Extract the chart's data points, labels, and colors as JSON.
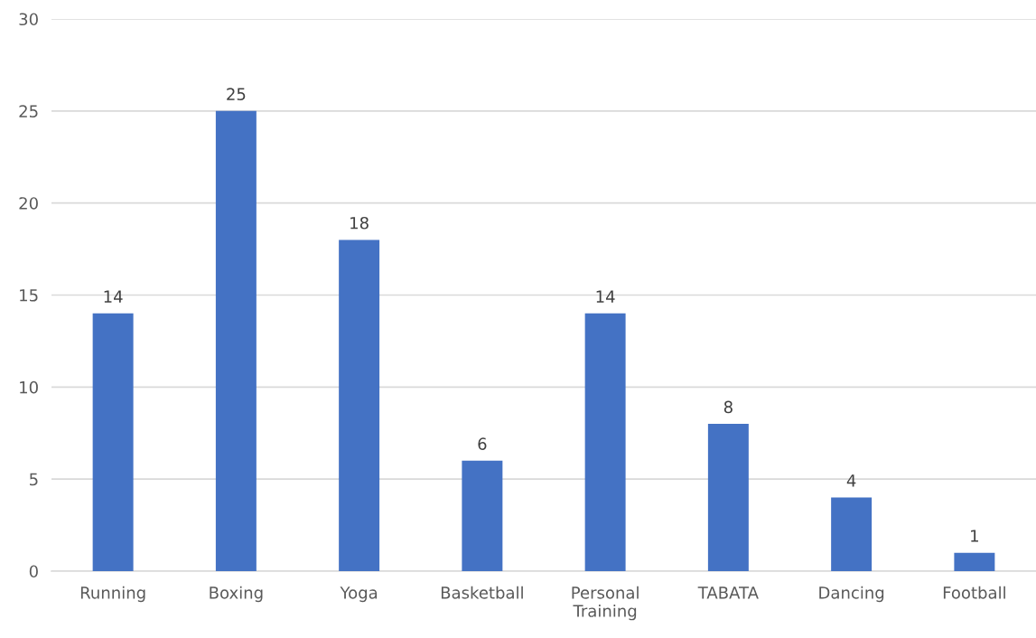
{
  "chart_data": {
    "type": "bar",
    "categories": [
      "Running",
      "Boxing",
      "Yoga",
      "Basketball",
      "Personal Training",
      "TABATA",
      "Dancing",
      "Football"
    ],
    "values": [
      14,
      25,
      18,
      6,
      14,
      8,
      4,
      1
    ],
    "color": "#4472c4",
    "ylim": [
      0,
      30
    ],
    "yticks": [
      0,
      5,
      10,
      15,
      20,
      25,
      30
    ],
    "grid": "y",
    "data_labels": true,
    "legend": false
  }
}
